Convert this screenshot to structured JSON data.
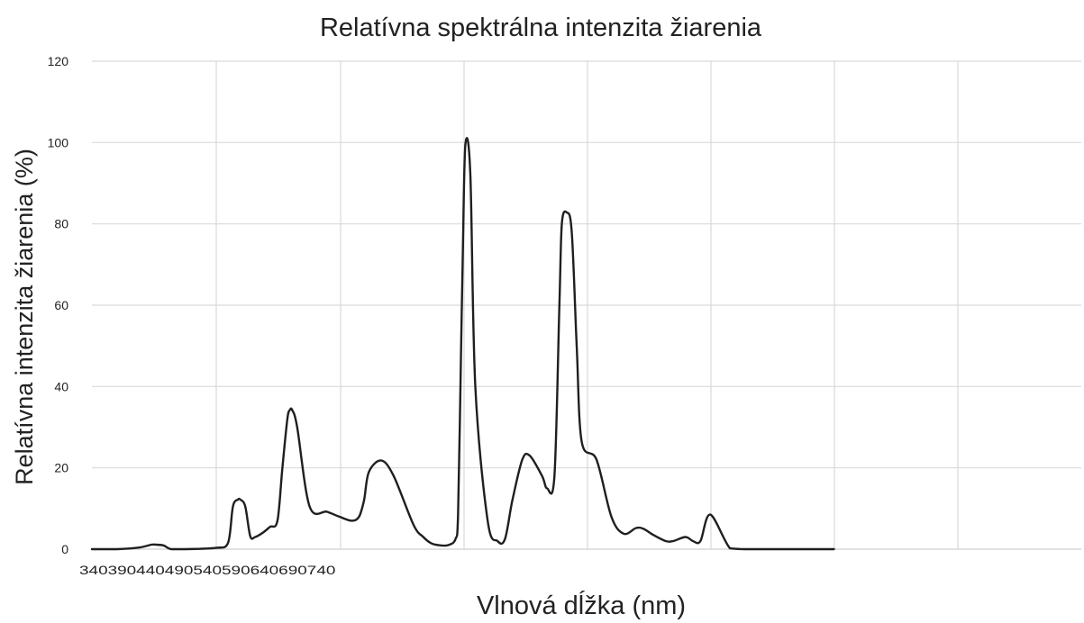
{
  "chart_data": {
    "type": "line",
    "title": "Relatívna spektrálna intenzita žiarenia",
    "xlabel": "Vlnová dĺžka (nm)",
    "ylabel": "Relatívna intenzita žiarenia (%)",
    "x_tick_labels": [
      "340",
      "390",
      "440",
      "490",
      "540",
      "590",
      "640",
      "690",
      "740"
    ],
    "y_ticks": [
      0,
      20,
      40,
      60,
      80,
      100,
      120
    ],
    "xlim": [
      340,
      740
    ],
    "ylim": [
      0,
      120
    ],
    "grid": true,
    "x": [
      340,
      350,
      359,
      364,
      366,
      369,
      372,
      377,
      390,
      395,
      397,
      399,
      400,
      402,
      404,
      406,
      409,
      412,
      415,
      417,
      419,
      420,
      421,
      423,
      428,
      435,
      440,
      445,
      448,
      450,
      452,
      457,
      462,
      470,
      474,
      477,
      480,
      484,
      487,
      488,
      489,
      490,
      491,
      493,
      495,
      500,
      504,
      507,
      510,
      514,
      517,
      522,
      524,
      527,
      529,
      530,
      532,
      534,
      536,
      538,
      544,
      550,
      555,
      560,
      563,
      567,
      572,
      575,
      580,
      583,
      586,
      590,
      598,
      604,
      610,
      615,
      618,
      620,
      623,
      630,
      640
    ],
    "y": [
      0,
      0,
      0.4,
      1.1,
      1.1,
      0.9,
      0,
      0,
      0.3,
      1.5,
      10.5,
      12.2,
      12.2,
      10.5,
      3.2,
      3,
      4,
      5.5,
      7,
      20,
      32,
      34.2,
      34.2,
      30,
      10.5,
      9.2,
      8,
      7,
      8,
      12,
      19,
      21.8,
      18,
      6,
      3,
      1.5,
      1,
      1,
      2.5,
      8,
      40,
      75,
      99.6,
      92,
      40,
      7,
      2,
      2.5,
      12,
      22,
      23,
      18,
      15,
      18,
      60,
      80,
      82.8,
      78,
      50,
      26.5,
      22,
      8,
      3.8,
      5.2,
      5,
      3.5,
      2,
      2,
      3,
      2,
      2,
      8.5,
      0.2,
      0,
      0,
      0,
      0,
      0,
      0,
      0,
      0
    ]
  }
}
